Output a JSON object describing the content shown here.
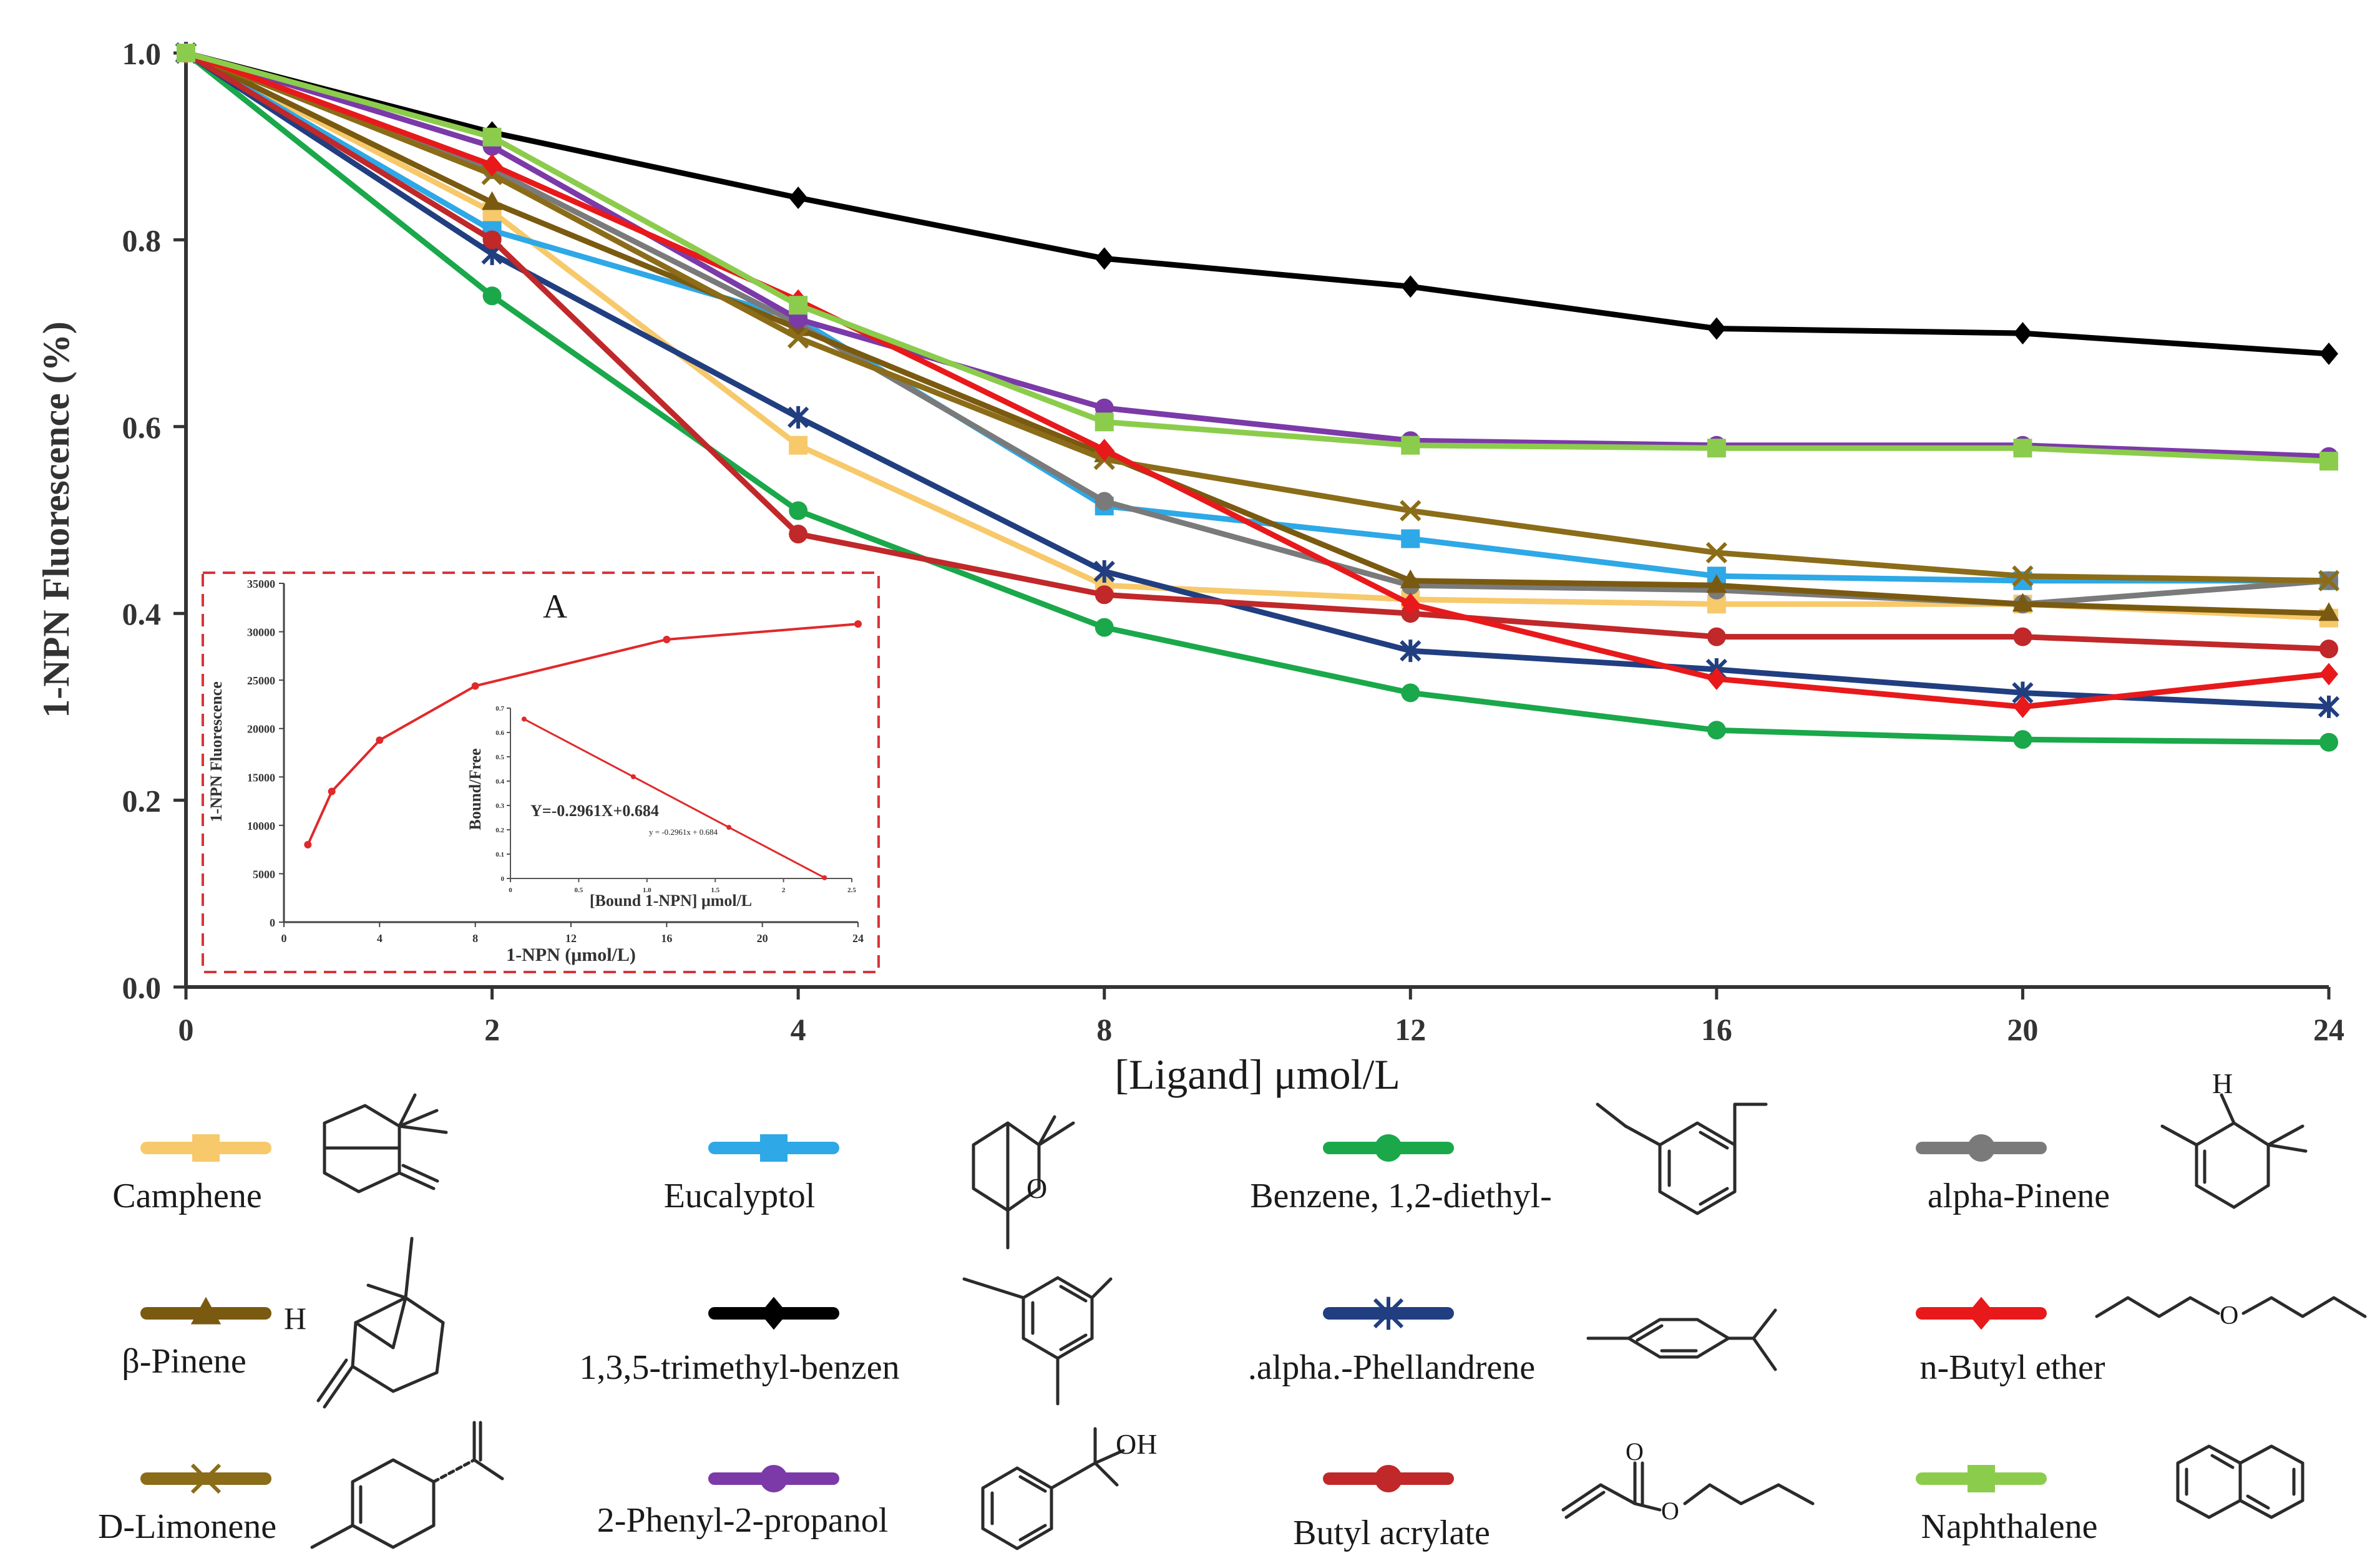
{
  "chart_data": {
    "type": "line",
    "title": "",
    "xlabel": "[Ligand] μmol/L",
    "ylabel": "1-NPN Fluorescence (%)",
    "categories": [
      "0",
      "2",
      "4",
      "8",
      "12",
      "16",
      "20",
      "24"
    ],
    "x": [
      0,
      2,
      4,
      8,
      12,
      16,
      20,
      24
    ],
    "ylim": [
      0,
      1.0
    ],
    "yticks": [
      "0.0",
      "0.2",
      "0.4",
      "0.6",
      "0.8",
      "1.0"
    ],
    "grid": false,
    "series": [
      {
        "name": "Camphene",
        "color": "#f7c96b",
        "marker": "square",
        "values": [
          1.0,
          0.83,
          0.58,
          0.43,
          0.415,
          0.41,
          0.41,
          0.395
        ]
      },
      {
        "name": "Eucalyptol",
        "color": "#2ea8e6",
        "marker": "square",
        "values": [
          1.0,
          0.81,
          0.715,
          0.515,
          0.48,
          0.44,
          0.435,
          0.435
        ]
      },
      {
        "name": "Benzene, 1,2-diethyl-",
        "color": "#1aa84a",
        "marker": "circle",
        "values": [
          1.0,
          0.74,
          0.51,
          0.385,
          0.315,
          0.275,
          0.265,
          0.262
        ]
      },
      {
        "name": "alpha-Pinene",
        "color": "#7a7a7a",
        "marker": "circle",
        "values": [
          1.0,
          0.875,
          0.71,
          0.52,
          0.43,
          0.425,
          0.41,
          0.435
        ]
      },
      {
        "name": "β-Pinene",
        "color": "#7a5a10",
        "marker": "triangle",
        "values": [
          1.0,
          0.84,
          0.705,
          0.57,
          0.435,
          0.43,
          0.41,
          0.4
        ]
      },
      {
        "name": "1,3,5-trimethyl-benzen",
        "color": "#000000",
        "marker": "diamond",
        "values": [
          1.0,
          0.915,
          0.845,
          0.78,
          0.75,
          0.705,
          0.7,
          0.678
        ]
      },
      {
        "name": "D-Limonene",
        "color": "#8b6c18",
        "marker": "x",
        "values": [
          1.0,
          0.87,
          0.695,
          0.565,
          0.51,
          0.465,
          0.44,
          0.435
        ]
      },
      {
        "name": "2-Phenyl-2-propanol",
        "color": "#7b3aa8",
        "marker": "circle",
        "values": [
          1.0,
          0.9,
          0.715,
          0.62,
          0.585,
          0.58,
          0.58,
          0.568
        ]
      },
      {
        "name": ".alpha.-Phellandrene",
        "color": "#213e80",
        "marker": "star",
        "values": [
          1.0,
          0.785,
          0.61,
          0.445,
          0.36,
          0.34,
          0.315,
          0.3
        ]
      },
      {
        "name": "Butyl acrylate",
        "color": "#c0282a",
        "marker": "circle",
        "values": [
          1.0,
          0.8,
          0.485,
          0.42,
          0.4,
          0.375,
          0.375,
          0.362
        ]
      },
      {
        "name": "n-Butyl ether",
        "color": "#e8191b",
        "marker": "diamond",
        "values": [
          1.0,
          0.88,
          0.735,
          0.575,
          0.41,
          0.33,
          0.3,
          0.335
        ]
      },
      {
        "name": "Naphthalene",
        "color": "#8ccc4c",
        "marker": "square",
        "values": [
          1.0,
          0.91,
          0.73,
          0.605,
          0.58,
          0.577,
          0.577,
          0.563
        ]
      }
    ],
    "legend_order": [
      "Camphene",
      "Eucalyptol",
      "Benzene, 1,2-diethyl-",
      "alpha-Pinene",
      "β-Pinene",
      "1,3,5-trimethyl-benzen",
      ".alpha.-Phellandrene",
      "n-Butyl ether",
      "D-Limonene",
      "2-Phenyl-2-propanol",
      "Butyl acrylate",
      "Naphthalene"
    ],
    "inset": {
      "label": "A",
      "xlabel": "1-NPN (μmol/L)",
      "ylabel": "1-NPN Fluorescence",
      "xticks": [
        "0",
        "4",
        "8",
        "12",
        "16",
        "20",
        "24"
      ],
      "yticks": [
        "0",
        "5000",
        "10000",
        "15000",
        "20000",
        "25000",
        "30000",
        "35000"
      ],
      "x": [
        1,
        2,
        4,
        8,
        16,
        24
      ],
      "values": [
        8000,
        13500,
        18800,
        24400,
        29200,
        30800
      ],
      "scatchard": {
        "xlabel": "[Bound 1-NPN] μmol/L",
        "ylabel": "Bound/Free",
        "equation": "Y=-0.2961X+0.684",
        "small_equation": "y = -0.2961x + 0.684",
        "xticks": [
          "0",
          "0.5",
          "1.0",
          "1.5",
          "2",
          "2.5"
        ],
        "yticks": [
          "0",
          "0.1",
          "0.2",
          "0.3",
          "0.4",
          "0.5",
          "0.6",
          "0.7"
        ],
        "x": [
          0.1,
          0.9,
          1.6,
          2.3
        ],
        "values": [
          0.655,
          0.418,
          0.21,
          0.003
        ]
      }
    }
  }
}
